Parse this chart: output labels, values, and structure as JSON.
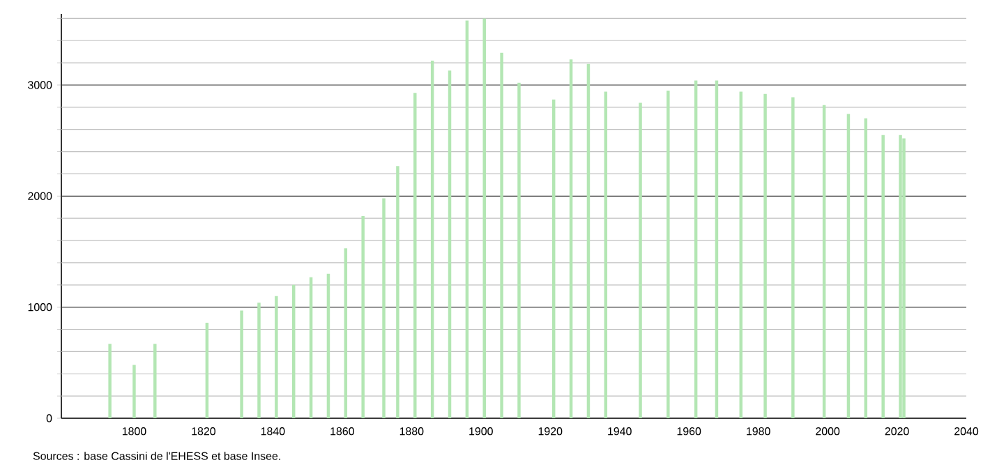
{
  "chart_data": {
    "type": "bar",
    "x": [
      1793,
      1800,
      1806,
      1821,
      1831,
      1836,
      1841,
      1846,
      1851,
      1856,
      1861,
      1866,
      1872,
      1876,
      1881,
      1886,
      1891,
      1896,
      1901,
      1906,
      1911,
      1921,
      1926,
      1931,
      1936,
      1946,
      1954,
      1962,
      1968,
      1975,
      1982,
      1990,
      1999,
      2006,
      2011,
      2016,
      2021,
      2022
    ],
    "values": [
      670,
      480,
      670,
      860,
      970,
      1040,
      1100,
      1200,
      1270,
      1300,
      1530,
      1820,
      1980,
      2270,
      2930,
      3220,
      3130,
      3580,
      3600,
      3290,
      3020,
      2870,
      3230,
      3190,
      2940,
      2840,
      2950,
      3040,
      3040,
      2940,
      2920,
      2890,
      2820,
      2740,
      2700,
      2550,
      2550,
      2520
    ],
    "color": "#b3e6b3",
    "xlim": [
      1779,
      2040
    ],
    "xticks": [
      1800,
      1820,
      1840,
      1860,
      1880,
      1900,
      1920,
      1940,
      1960,
      1980,
      2000,
      2020,
      2040
    ],
    "ylim": [
      0,
      3640
    ],
    "yticks": [
      0,
      {
        "value": 200,
        "label": null
      },
      {
        "value": 400,
        "label": null
      },
      {
        "value": 600,
        "label": null
      },
      {
        "value": 800,
        "label": null
      },
      1000,
      {
        "value": 1200,
        "label": null
      },
      {
        "value": 1400,
        "label": null
      },
      {
        "value": 1600,
        "label": null
      },
      {
        "value": 1800,
        "label": null
      },
      2000,
      {
        "value": 2200,
        "label": null
      },
      {
        "value": 2400,
        "label": null
      },
      {
        "value": 2600,
        "label": null
      },
      {
        "value": 2800,
        "label": null
      },
      3000,
      {
        "value": 3200,
        "label": null
      },
      {
        "value": 3400,
        "label": null
      },
      {
        "value": 3600,
        "label": null
      }
    ],
    "grid": "y",
    "annotations": [
      "Sources : base Cassini de l'EHESS et base Insee."
    ]
  }
}
